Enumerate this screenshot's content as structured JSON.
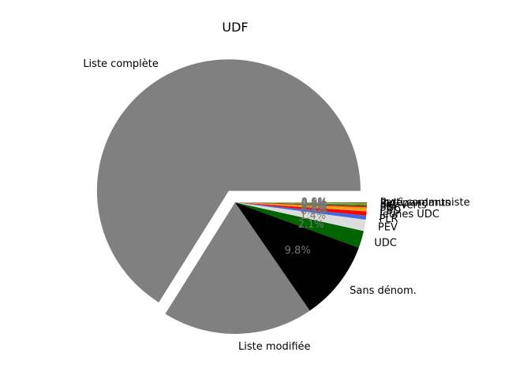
{
  "chart_data": {
    "type": "pie",
    "title": "UDF",
    "slices": [
      {
        "label": "Liste complète",
        "value": 66.1,
        "color": "#808080",
        "explode": true,
        "pct_label": ""
      },
      {
        "label": "Liste modifiée",
        "value": 18.5,
        "color": "#808080",
        "explode": false,
        "pct_label": ""
      },
      {
        "label": "Sans dénom.",
        "value": 9.8,
        "color": "#000000",
        "explode": false,
        "pct_label": "9.8%"
      },
      {
        "label": "UDC",
        "value": 2.1,
        "color": "#006400",
        "explode": false,
        "pct_label": "2.1%"
      },
      {
        "label": "PEV",
        "value": 1.4,
        "color": "#dcdcdc",
        "explode": false,
        "pct_label": "1.4%"
      },
      {
        "label": "PLR",
        "value": 0.5,
        "color": "#4169e1",
        "explode": false,
        "pct_label": "0.5%"
      },
      {
        "label": "Jeunes UDC",
        "value": 0.5,
        "color": "#ff0000",
        "explode": false,
        "pct_label": "0.5%"
      },
      {
        "label": "PBD",
        "value": 0.3,
        "color": "#daa520",
        "explode": false,
        "pct_label": "0.3%"
      },
      {
        "label": "PDC",
        "value": 0.2,
        "color": "#ff8c00",
        "explode": false,
        "pct_label": "0.2%"
      },
      {
        "label": "PS",
        "value": 0.2,
        "color": "#b22222",
        "explode": false,
        "pct_label": "0.2%"
      },
      {
        "label": "Les Verts",
        "value": 0.15,
        "color": "#228b22",
        "explode": false,
        "pct_label": "0.1%"
      },
      {
        "label": "PVL",
        "value": 0.1,
        "color": "#9acd32",
        "explode": false,
        "pct_label": "0.1%"
      },
      {
        "label": "Indépendants",
        "value": 0.1,
        "color": "#6b8e23",
        "explode": false,
        "pct_label": "0.1%"
      },
      {
        "label": "Parti communiste",
        "value": 0.05,
        "color": "#8b0000",
        "explode": false,
        "pct_label": "0.0%"
      }
    ]
  }
}
